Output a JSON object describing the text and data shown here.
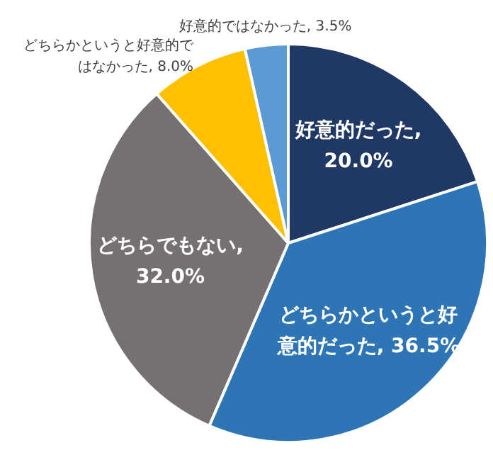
{
  "chart_data": {
    "type": "pie",
    "categories": [
      "好意的だった",
      "どちらかというと好意的だった",
      "どちらでもない",
      "どちらかというと好意的ではなかった",
      "好意的ではなかった"
    ],
    "values": [
      20.0,
      36.5,
      32.0,
      8.0,
      3.5
    ],
    "value_labels": [
      ", 20.0%",
      ", 36.5%",
      ", 32.0%",
      ", 8.0%",
      ", 3.5%"
    ],
    "colors": [
      "#203864",
      "#2e75b6",
      "#767171",
      "#ffc000",
      "#5b9bd5"
    ],
    "legend": false
  }
}
